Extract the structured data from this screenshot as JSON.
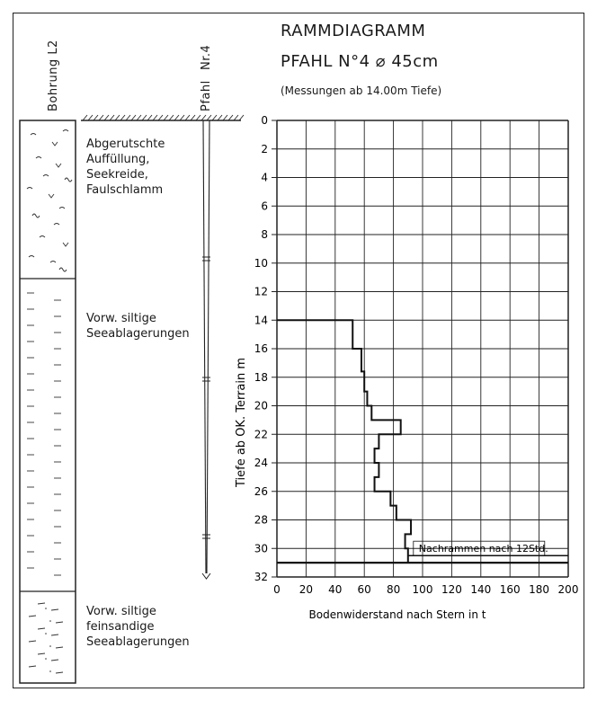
{
  "header": {
    "borehole_label": "Bohrung L2",
    "pile_label": "Pfahl",
    "pile_number": "Nr.4",
    "title": "RAMMDIAGRAMM",
    "subtitle": "PFAHL N°4 ⌀ 45cm",
    "note": "(Messungen ab 14.00m Tiefe)"
  },
  "layers": [
    {
      "lines": [
        "Abgerutschte",
        "Auffüllung,",
        "Seekreide,",
        "Faulschlamm"
      ],
      "from_depth": 0,
      "to_depth": 10.5
    },
    {
      "lines": [
        "Vorw. siltige",
        "Seeablagerungen"
      ],
      "from_depth": 10.5,
      "to_depth": 32
    },
    {
      "lines": [
        "Vorw. siltige",
        "feinsandige",
        "Seeablagerungen"
      ],
      "from_depth": 32,
      "to_depth": 38
    }
  ],
  "chart_data": {
    "type": "line",
    "title": "RAMMDIAGRAMM",
    "xlabel": "Bodenwiderstand nach Stern in t",
    "ylabel": "Tiefe ab OK. Terrain m",
    "xlim": [
      0,
      200
    ],
    "ylim": [
      0,
      32
    ],
    "y_inverted": true,
    "x_ticks": [
      0,
      20,
      40,
      60,
      80,
      100,
      120,
      140,
      160,
      180,
      200
    ],
    "y_ticks": [
      0,
      2,
      4,
      6,
      8,
      10,
      12,
      14,
      16,
      18,
      20,
      22,
      24,
      26,
      28,
      30,
      32
    ],
    "grid": true,
    "step_profile": [
      {
        "from_depth": 14,
        "to_depth": 16,
        "value": 52
      },
      {
        "from_depth": 16,
        "to_depth": 17.6,
        "value": 58
      },
      {
        "from_depth": 17.6,
        "to_depth": 19,
        "value": 60
      },
      {
        "from_depth": 19,
        "to_depth": 20,
        "value": 62
      },
      {
        "from_depth": 20,
        "to_depth": 21,
        "value": 65
      },
      {
        "from_depth": 21,
        "to_depth": 22,
        "value": 85
      },
      {
        "from_depth": 22,
        "to_depth": 23,
        "value": 70
      },
      {
        "from_depth": 23,
        "to_depth": 24,
        "value": 67
      },
      {
        "from_depth": 24,
        "to_depth": 25,
        "value": 70
      },
      {
        "from_depth": 25,
        "to_depth": 26,
        "value": 67
      },
      {
        "from_depth": 26,
        "to_depth": 27,
        "value": 78
      },
      {
        "from_depth": 27,
        "to_depth": 28,
        "value": 82
      },
      {
        "from_depth": 28,
        "to_depth": 29,
        "value": 92
      },
      {
        "from_depth": 29,
        "to_depth": 30,
        "value": 88
      },
      {
        "from_depth": 30,
        "to_depth": 31,
        "value": 90
      }
    ],
    "redrive": {
      "label": "Nachrammen nach 12Std.",
      "depth_start": 30.5,
      "depth_end": 31,
      "value": 200
    },
    "pile_tip_depth": 31
  }
}
